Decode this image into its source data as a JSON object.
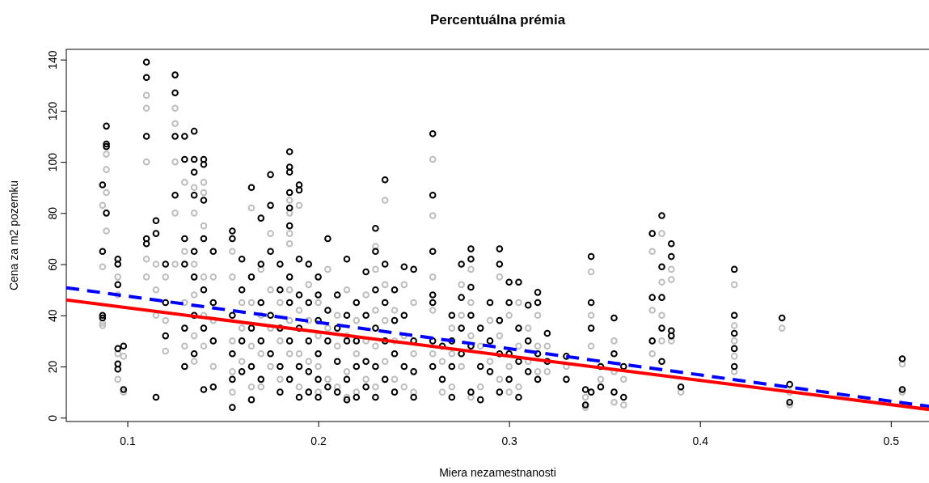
{
  "chart_data": {
    "type": "scatter",
    "title": "Percentuálna prémia",
    "xlabel": "Miera nezamestnanosti",
    "ylabel": "Cena za m2 pozemku",
    "xlim": [
      0.068,
      0.52
    ],
    "ylim": [
      -1.5,
      144
    ],
    "xticks": [
      0.1,
      0.2,
      0.3,
      0.4,
      0.5
    ],
    "yticks": [
      0,
      20,
      40,
      60,
      80,
      100,
      120,
      140
    ],
    "series": [
      {
        "marker": "circle",
        "color": "#bebebe",
        "x": [
          0.087,
          0.087,
          0.087,
          0.087,
          0.089,
          0.089,
          0.089,
          0.089,
          0.095,
          0.095,
          0.095,
          0.095,
          0.098,
          0.098,
          0.11,
          0.11,
          0.11,
          0.11,
          0.11,
          0.115,
          0.115,
          0.115,
          0.12,
          0.12,
          0.12,
          0.125,
          0.125,
          0.125,
          0.125,
          0.125,
          0.13,
          0.13,
          0.13,
          0.13,
          0.135,
          0.135,
          0.135,
          0.135,
          0.135,
          0.135,
          0.14,
          0.14,
          0.14,
          0.14,
          0.14,
          0.14,
          0.145,
          0.145,
          0.145,
          0.155,
          0.155,
          0.155,
          0.155,
          0.155,
          0.16,
          0.16,
          0.16,
          0.165,
          0.165,
          0.165,
          0.165,
          0.17,
          0.17,
          0.17,
          0.17,
          0.175,
          0.175,
          0.175,
          0.175,
          0.18,
          0.18,
          0.18,
          0.185,
          0.185,
          0.185,
          0.185,
          0.185,
          0.185,
          0.185,
          0.19,
          0.19,
          0.19,
          0.19,
          0.19,
          0.195,
          0.195,
          0.195,
          0.195,
          0.2,
          0.2,
          0.2,
          0.2,
          0.205,
          0.205,
          0.205,
          0.21,
          0.21,
          0.21,
          0.215,
          0.215,
          0.215,
          0.215,
          0.22,
          0.22,
          0.22,
          0.225,
          0.225,
          0.225,
          0.23,
          0.23,
          0.23,
          0.23,
          0.23,
          0.235,
          0.235,
          0.235,
          0.235,
          0.24,
          0.24,
          0.24,
          0.245,
          0.245,
          0.245,
          0.25,
          0.25,
          0.25,
          0.26,
          0.26,
          0.26,
          0.26,
          0.26,
          0.265,
          0.265,
          0.27,
          0.27,
          0.27,
          0.275,
          0.275,
          0.275,
          0.28,
          0.28,
          0.28,
          0.28,
          0.285,
          0.285,
          0.29,
          0.29,
          0.295,
          0.295,
          0.295,
          0.3,
          0.3,
          0.3,
          0.305,
          0.305,
          0.305,
          0.31,
          0.31,
          0.315,
          0.315,
          0.315,
          0.32,
          0.32,
          0.33,
          0.34,
          0.34,
          0.343,
          0.343,
          0.343,
          0.348,
          0.355,
          0.355,
          0.355,
          0.36,
          0.36,
          0.375,
          0.375,
          0.375,
          0.38,
          0.38,
          0.38,
          0.38,
          0.385,
          0.385,
          0.385,
          0.39,
          0.418,
          0.418,
          0.418,
          0.418,
          0.418,
          0.443,
          0.447,
          0.447,
          0.506,
          0.506
        ],
        "values": [
          83,
          59,
          37,
          36,
          103,
          97,
          88,
          73,
          55,
          48,
          25,
          15,
          24,
          10,
          126,
          121,
          100,
          62,
          55,
          60,
          50,
          40,
          55,
          38,
          26,
          121,
          115,
          100,
          80,
          60,
          92,
          65,
          45,
          28,
          90,
          80,
          60,
          48,
          32,
          22,
          92,
          88,
          75,
          55,
          40,
          28,
          55,
          38,
          20,
          65,
          55,
          30,
          18,
          10,
          45,
          35,
          22,
          82,
          45,
          28,
          12,
          58,
          40,
          25,
          12,
          72,
          50,
          35,
          20,
          45,
          30,
          15,
          85,
          80,
          72,
          68,
          50,
          38,
          25,
          83,
          62,
          42,
          25,
          12,
          52,
          38,
          22,
          10,
          45,
          32,
          20,
          10,
          58,
          35,
          15,
          40,
          28,
          12,
          50,
          32,
          18,
          8,
          38,
          25,
          10,
          48,
          30,
          15,
          67,
          58,
          42,
          28,
          12,
          85,
          52,
          38,
          22,
          42,
          30,
          15,
          52,
          32,
          12,
          45,
          25,
          10,
          101,
          79,
          55,
          42,
          25,
          22,
          10,
          35,
          25,
          12,
          52,
          40,
          20,
          58,
          45,
          32,
          8,
          28,
          12,
          38,
          22,
          55,
          32,
          15,
          40,
          20,
          10,
          45,
          28,
          12,
          35,
          22,
          40,
          28,
          18,
          28,
          18,
          20,
          8,
          4,
          57,
          40,
          28,
          15,
          30,
          18,
          6,
          15,
          5,
          65,
          42,
          25,
          72,
          53,
          40,
          30,
          58,
          54,
          30,
          10,
          52,
          36,
          30,
          24,
          18,
          35,
          10,
          5,
          21,
          10
        ]
      },
      {
        "marker": "circle",
        "color": "#000000",
        "x": [
          0.087,
          0.087,
          0.087,
          0.087,
          0.089,
          0.089,
          0.089,
          0.089,
          0.095,
          0.095,
          0.095,
          0.095,
          0.095,
          0.095,
          0.098,
          0.098,
          0.11,
          0.11,
          0.11,
          0.11,
          0.11,
          0.115,
          0.115,
          0.115,
          0.12,
          0.12,
          0.12,
          0.125,
          0.125,
          0.125,
          0.125,
          0.13,
          0.13,
          0.13,
          0.13,
          0.13,
          0.13,
          0.135,
          0.135,
          0.135,
          0.135,
          0.135,
          0.135,
          0.135,
          0.135,
          0.14,
          0.14,
          0.14,
          0.14,
          0.14,
          0.14,
          0.14,
          0.145,
          0.145,
          0.145,
          0.145,
          0.155,
          0.155,
          0.155,
          0.155,
          0.155,
          0.155,
          0.16,
          0.16,
          0.16,
          0.16,
          0.165,
          0.165,
          0.165,
          0.165,
          0.165,
          0.17,
          0.17,
          0.17,
          0.17,
          0.17,
          0.175,
          0.175,
          0.175,
          0.175,
          0.175,
          0.18,
          0.18,
          0.18,
          0.18,
          0.18,
          0.185,
          0.185,
          0.185,
          0.185,
          0.185,
          0.185,
          0.185,
          0.185,
          0.185,
          0.185,
          0.19,
          0.19,
          0.19,
          0.19,
          0.19,
          0.19,
          0.19,
          0.195,
          0.195,
          0.195,
          0.195,
          0.195,
          0.2,
          0.2,
          0.2,
          0.2,
          0.2,
          0.2,
          0.205,
          0.205,
          0.205,
          0.205,
          0.21,
          0.21,
          0.21,
          0.21,
          0.215,
          0.215,
          0.215,
          0.215,
          0.215,
          0.22,
          0.22,
          0.22,
          0.22,
          0.225,
          0.225,
          0.225,
          0.225,
          0.23,
          0.23,
          0.23,
          0.23,
          0.23,
          0.23,
          0.235,
          0.235,
          0.235,
          0.235,
          0.235,
          0.24,
          0.24,
          0.24,
          0.24,
          0.245,
          0.245,
          0.245,
          0.25,
          0.25,
          0.25,
          0.25,
          0.26,
          0.26,
          0.26,
          0.26,
          0.26,
          0.26,
          0.26,
          0.265,
          0.265,
          0.27,
          0.27,
          0.27,
          0.27,
          0.275,
          0.275,
          0.275,
          0.275,
          0.28,
          0.28,
          0.28,
          0.28,
          0.28,
          0.28,
          0.285,
          0.285,
          0.285,
          0.29,
          0.29,
          0.29,
          0.295,
          0.295,
          0.295,
          0.295,
          0.295,
          0.3,
          0.3,
          0.3,
          0.3,
          0.305,
          0.305,
          0.305,
          0.305,
          0.31,
          0.31,
          0.31,
          0.315,
          0.315,
          0.315,
          0.315,
          0.32,
          0.32,
          0.33,
          0.33,
          0.34,
          0.34,
          0.343,
          0.343,
          0.343,
          0.343,
          0.348,
          0.348,
          0.355,
          0.355,
          0.355,
          0.36,
          0.36,
          0.375,
          0.375,
          0.375,
          0.38,
          0.38,
          0.38,
          0.38,
          0.38,
          0.385,
          0.385,
          0.385,
          0.385,
          0.39,
          0.418,
          0.418,
          0.418,
          0.418,
          0.418,
          0.443,
          0.447,
          0.447,
          0.506,
          0.506
        ],
        "values": [
          91,
          65,
          40,
          39,
          114,
          107,
          106,
          80,
          62,
          60,
          52,
          27,
          21,
          19,
          28,
          11,
          139,
          133,
          110,
          70,
          68,
          77,
          72,
          8,
          60,
          45,
          32,
          134,
          127,
          110,
          87,
          110,
          101,
          70,
          60,
          35,
          20,
          112,
          101,
          96,
          87,
          65,
          55,
          40,
          25,
          101,
          99,
          85,
          70,
          50,
          35,
          11,
          65,
          45,
          30,
          12,
          73,
          70,
          40,
          25,
          15,
          4,
          62,
          50,
          30,
          18,
          90,
          55,
          35,
          20,
          7,
          78,
          60,
          45,
          30,
          15,
          95,
          83,
          65,
          40,
          25,
          60,
          50,
          35,
          20,
          10,
          104,
          98,
          96,
          88,
          82,
          75,
          55,
          45,
          30,
          15,
          91,
          89,
          62,
          48,
          35,
          20,
          8,
          60,
          45,
          30,
          18,
          10,
          55,
          48,
          38,
          25,
          15,
          8,
          70,
          42,
          30,
          12,
          48,
          35,
          22,
          10,
          62,
          40,
          30,
          15,
          7,
          45,
          30,
          20,
          8,
          57,
          40,
          22,
          12,
          74,
          65,
          50,
          35,
          20,
          8,
          93,
          60,
          45,
          30,
          15,
          50,
          38,
          25,
          10,
          59,
          40,
          20,
          58,
          30,
          18,
          8,
          111,
          87,
          65,
          48,
          45,
          30,
          20,
          28,
          15,
          40,
          30,
          20,
          8,
          60,
          47,
          35,
          25,
          66,
          62,
          51,
          40,
          28,
          10,
          35,
          20,
          7,
          45,
          30,
          18,
          66,
          60,
          38,
          25,
          10,
          53,
          45,
          25,
          15,
          53,
          35,
          22,
          8,
          44,
          30,
          18,
          49,
          45,
          25,
          15,
          33,
          22,
          24,
          15,
          11,
          5,
          63,
          45,
          35,
          10,
          20,
          12,
          39,
          25,
          10,
          20,
          8,
          72,
          47,
          30,
          79,
          59,
          47,
          35,
          22,
          68,
          63,
          34,
          32,
          12,
          58,
          40,
          33,
          27,
          20,
          39,
          13,
          6,
          23,
          11
        ]
      },
      {
        "type": "line",
        "color": "#0000ff",
        "line_style": "dashed",
        "x": [
          0.068,
          0.52
        ],
        "values": [
          50.8,
          4.4
        ]
      },
      {
        "type": "line",
        "color": "#ff0000",
        "line_style": "solid",
        "x": [
          0.068,
          0.52
        ],
        "values": [
          46,
          3.2
        ]
      }
    ]
  }
}
